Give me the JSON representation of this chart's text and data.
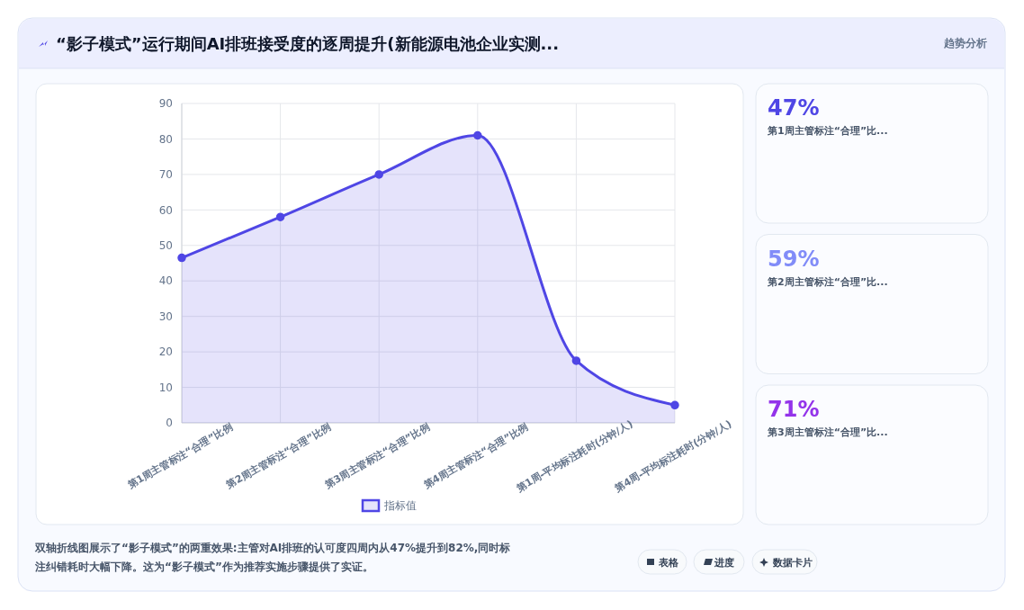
{
  "chart_data": [
    {
      "type": "area",
      "title": "“影子模式”运行期间AI排班接受度的逐周提升(新能源电池企业实测...",
      "categories": [
        "第1周主管标注“合理”比例",
        "第2周主管标注“合理”比例",
        "第3周主管标注“合理”比例",
        "第4周主管标注“合理”比例",
        "第1周-平均标注耗时(分钟/人)",
        "第4周-平均标注耗时(分钟/人)"
      ],
      "series": [
        {
          "name": "指标值",
          "color": "#4f46e5",
          "values": [
            46.5,
            58,
            70,
            81,
            17.5,
            5
          ]
        }
      ],
      "ylim": [
        0,
        90
      ],
      "yticks": [
        0,
        10,
        20,
        30,
        40,
        50,
        60,
        70,
        80,
        90
      ],
      "grid": true,
      "legend": "bottom",
      "marker": "circle",
      "annotations": [
        "趋势分析",
        "双轴折线图展示了“影子模式”的两重效果:主管对AI排班的认可度四周内从47%提升到82%,同时标注纠错耗时大幅下降。这为“影子模式”作为推荐实施步骤提供了实证。",
        "表格",
        "进度",
        "数据卡片"
      ]
    },
    {
      "type": "other",
      "annotations": [
        "47%",
        "第1周主管标注“合理”比...",
        "59%",
        "第2周主管标注“合理”比...",
        "71%",
        "第3周主管标注“合理”比..."
      ],
      "colors": [
        "#4f46e5",
        "#818cf8",
        "#9333ea"
      ]
    }
  ]
}
